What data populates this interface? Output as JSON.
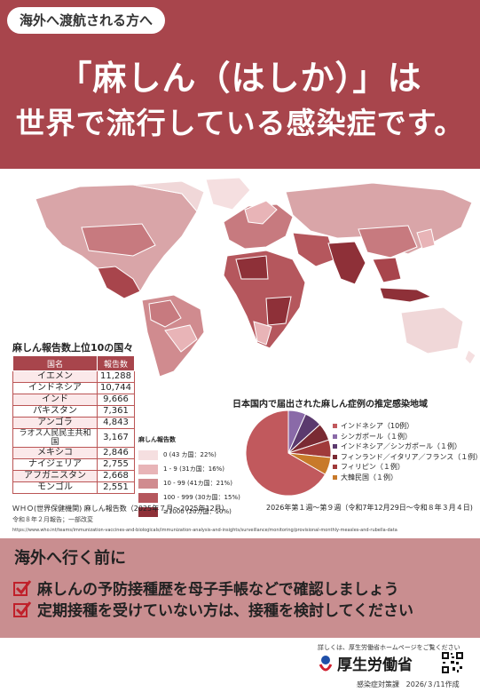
{
  "header": {
    "tag": "海外へ渡航される方へ",
    "line1": "「麻しん（はしか）」は",
    "line2": "世界で流行している感染症です。"
  },
  "top10": {
    "title": "麻しん報告数上位10の国々",
    "col_country": "国名",
    "col_count": "報告数",
    "rows": [
      {
        "country": "イエメン",
        "count": "11,288"
      },
      {
        "country": "インドネシア",
        "count": "10,744"
      },
      {
        "country": "インド",
        "count": "9,666"
      },
      {
        "country": "パキスタン",
        "count": "7,361"
      },
      {
        "country": "アンゴラ",
        "count": "4,843"
      },
      {
        "country": "ラオス人民民主共和国",
        "count": "3,167"
      },
      {
        "country": "メキシコ",
        "count": "2,846"
      },
      {
        "country": "ナイジェリア",
        "count": "2,755"
      },
      {
        "country": "アフガニスタン",
        "count": "2,668"
      },
      {
        "country": "モンゴル",
        "count": "2,551"
      }
    ]
  },
  "map_legend": {
    "title": "麻しん報告数",
    "items": [
      {
        "label": "0 (43 カ国：22%)",
        "color": "#f5dfe0"
      },
      {
        "label": "1 - 9 (31カ国：16%)",
        "color": "#e8b4b7"
      },
      {
        "label": "10 - 99 (41カ国：21%)",
        "color": "#d08b8f"
      },
      {
        "label": "100 - 999 (30カ国：15%)",
        "color": "#b5575d"
      },
      {
        "label": "≥1000 (20カ国：10%)",
        "color": "#8e3038"
      }
    ]
  },
  "source": {
    "line1": "ＷＨＯ(世界保健機関) 麻しん報告数（2025年７月～2025年12月）",
    "line2": "令和８年２月報告；一部改変",
    "url": "https://www.who.int/teams/immunization-vaccines-and-biologicals/immunization-analysis-and-insights/surveillance/monitoring/provisional-monthly-measles-and-rubella-data"
  },
  "pie": {
    "title": "日本国内で届出された麻しん症例の推定感染地域",
    "period": "2026年第１週～第９週（令和7年12月29日～令和８年３月４日)",
    "chart_data": {
      "type": "pie",
      "categories": [
        "インドネシア",
        "シンガポール",
        "インドネシア／シンガポール",
        "フィンランド／イタリア／フランス",
        "フィリピン",
        "大韓民国"
      ],
      "values": [
        10,
        1,
        1,
        1,
        1,
        1
      ],
      "legend_labels": [
        "インドネシア（10例）",
        "シンガポール（１例）",
        "インドネシア／シンガポール（１例）",
        "フィンランド／イタリア／フランス（１例）",
        "フィリピン（１例）",
        "大韓民国（１例）"
      ],
      "colors": [
        "#c1595d",
        "#8a6aa8",
        "#5b3a6e",
        "#7a2a33",
        "#a03a3a",
        "#c87a2a"
      ],
      "legend_position": "right"
    }
  },
  "before": {
    "title": "海外へ行く前に",
    "items": [
      "麻しんの予防接種歴を母子手帳などで確認しましょう",
      "定期接種を受けていない方は、接種を検討してください"
    ]
  },
  "footer": {
    "detail": "詳しくは、厚生労働省ホームページをご覧ください",
    "ministry": "厚生労働省",
    "dept": "感染症対策課",
    "date": "2026/３/11作成"
  }
}
